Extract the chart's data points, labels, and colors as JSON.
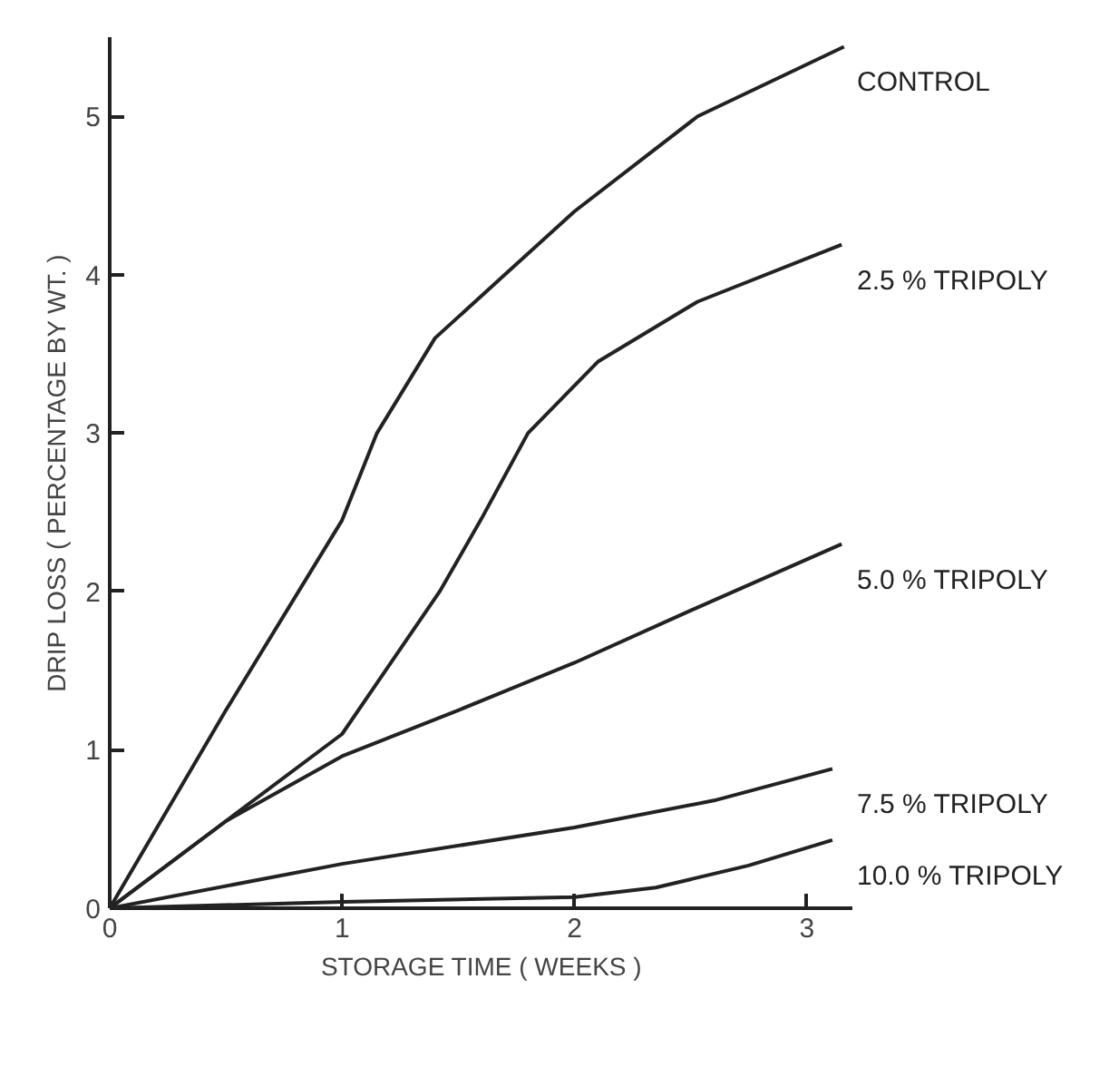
{
  "chart_data": {
    "type": "line",
    "xlabel": "STORAGE TIME ( WEEKS )",
    "ylabel": "DRIP LOSS ( PERCENTAGE BY WT. )",
    "xlim": [
      0,
      3.2
    ],
    "ylim": [
      0,
      5.5
    ],
    "xticks": [
      0,
      1,
      2,
      3
    ],
    "yticks": [
      0,
      1,
      2,
      3,
      4,
      5
    ],
    "grid": false,
    "legend": false,
    "marker": "none",
    "line_style": "solid",
    "series": [
      {
        "name": "CONTROL",
        "color": "#222222",
        "x": [
          0,
          0.5,
          1,
          1.15,
          1.4,
          1.7,
          2,
          2.53,
          3.16
        ],
        "values": [
          0,
          1.25,
          2.45,
          3.0,
          3.6,
          4.0,
          4.4,
          5.0,
          5.44
        ]
      },
      {
        "name": "2.5 % TRIPOLY",
        "color": "#222222",
        "x": [
          0,
          0.5,
          1,
          1.42,
          1.6,
          1.8,
          2.1,
          2.53,
          3.15
        ],
        "values": [
          0,
          0.55,
          1.1,
          2.0,
          2.46,
          3.0,
          3.45,
          3.83,
          4.19
        ]
      },
      {
        "name": "5.0 % TRIPOLY",
        "color": "#222222",
        "x": [
          0,
          0.5,
          1,
          1.5,
          2,
          2.5,
          3.15
        ],
        "values": [
          0,
          0.55,
          0.96,
          1.25,
          1.55,
          1.88,
          2.3
        ]
      },
      {
        "name": "7.5 % TRIPOLY",
        "color": "#222222",
        "x": [
          0,
          1,
          2,
          2.6,
          3.11
        ],
        "values": [
          0,
          0.28,
          0.51,
          0.68,
          0.88
        ]
      },
      {
        "name": "10.0 % TRIPOLY",
        "color": "#222222",
        "x": [
          0,
          1,
          2,
          2.35,
          2.75,
          3.11
        ],
        "values": [
          0,
          0.04,
          0.07,
          0.13,
          0.27,
          0.43
        ]
      }
    ]
  }
}
